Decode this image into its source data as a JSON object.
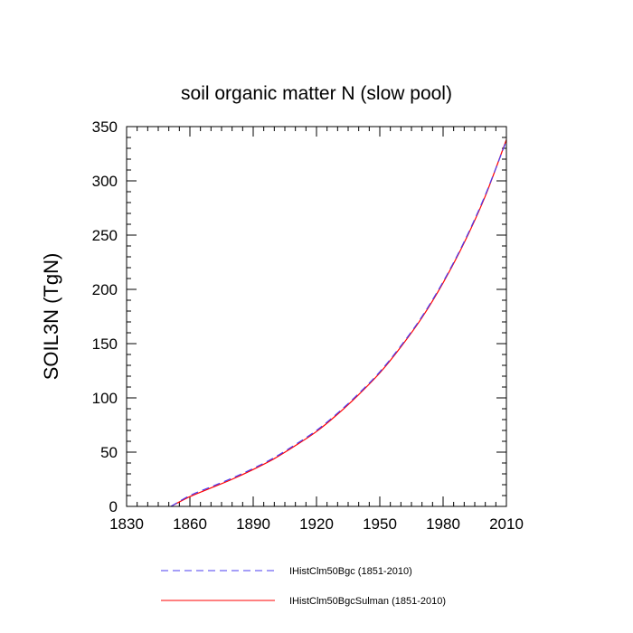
{
  "chart_data": {
    "type": "line",
    "title": "soil organic matter N (slow pool)",
    "xlabel": "",
    "ylabel": "SOIL3N  (TgN)",
    "xlim": [
      1830,
      2010
    ],
    "ylim": [
      0,
      350
    ],
    "xticks": [
      1830,
      1860,
      1890,
      1920,
      1950,
      1980,
      2010
    ],
    "yticks": [
      0,
      50,
      100,
      150,
      200,
      250,
      300,
      350
    ],
    "grid": false,
    "legend_position": "bottom",
    "x": [
      1851,
      1860,
      1870,
      1880,
      1890,
      1900,
      1910,
      1920,
      1930,
      1940,
      1950,
      1960,
      1970,
      1980,
      1990,
      2000,
      2010
    ],
    "series": [
      {
        "name": "IHistClm50Bgc (1851-2010)",
        "color": "#4b3df2",
        "dash": "dashed",
        "values": [
          0,
          10,
          18,
          26,
          35,
          45,
          57,
          70,
          86,
          104,
          124,
          148,
          175,
          207,
          244,
          287,
          337
        ]
      },
      {
        "name": "IHistClm50BgcSulman (1851-2010)",
        "color": "#ff0000",
        "dash": "solid",
        "values": [
          0,
          9,
          17,
          25,
          34,
          44,
          56,
          69,
          85,
          103,
          123,
          147,
          174,
          206,
          243,
          286,
          338
        ]
      }
    ]
  }
}
